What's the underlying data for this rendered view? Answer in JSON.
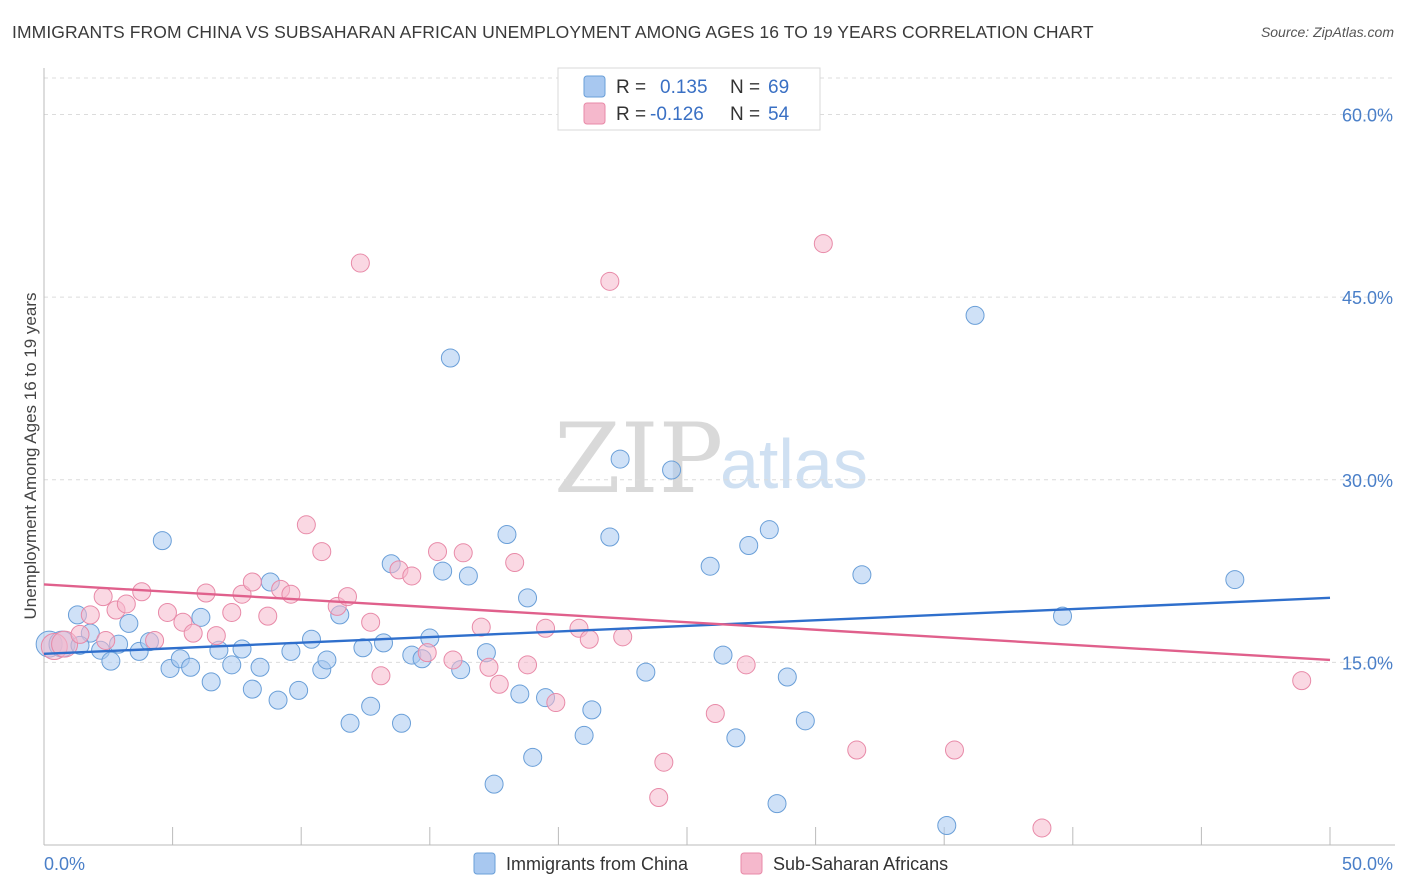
{
  "title": "IMMIGRANTS FROM CHINA VS SUBSAHARAN AFRICAN UNEMPLOYMENT AMONG AGES 16 TO 19 YEARS CORRELATION CHART",
  "source": "Source: ZipAtlas.com",
  "watermark": {
    "zip": "ZIP",
    "atlas": "atlas"
  },
  "legend": {
    "rows": [
      {
        "r_label": "R =",
        "r_value": "0.135",
        "n_label": "N =",
        "n_value": "69",
        "color": "#a8c8f0"
      },
      {
        "r_label": "R =",
        "r_value": "-0.126",
        "n_label": "N =",
        "n_value": "54",
        "color": "#f5b8cc"
      }
    ]
  },
  "chart_data": {
    "type": "scatter",
    "title": "IMMIGRANTS FROM CHINA VS SUBSAHARAN AFRICAN UNEMPLOYMENT AMONG AGES 16 TO 19 YEARS CORRELATION CHART",
    "xlabel": "",
    "ylabel": "Unemployment Among Ages 16 to 19 years",
    "xlim": [
      0,
      50
    ],
    "ylim": [
      0,
      63
    ],
    "x_tick_labels": [
      "0.0%",
      "50.0%"
    ],
    "y_ticks": [
      15,
      30,
      45,
      60
    ],
    "y_tick_labels": [
      "15.0%",
      "30.0%",
      "45.0%",
      "60.0%"
    ],
    "grid": "horizontal dashed",
    "legend_position": "top-center",
    "series": [
      {
        "name": "Immigrants from China",
        "color": "#a8c8f0",
        "stroke": "#6a9fd8",
        "trend": {
          "x": [
            0,
            50
          ],
          "y": [
            15.7,
            20.3
          ],
          "color": "#2f6fcc"
        },
        "points": [
          [
            0.2,
            16.5
          ],
          [
            0.7,
            16.5
          ],
          [
            1.3,
            18.9
          ],
          [
            1.8,
            17.4
          ],
          [
            2.2,
            16.0
          ],
          [
            2.6,
            15.1
          ],
          [
            2.9,
            16.5
          ],
          [
            3.3,
            18.2
          ],
          [
            3.7,
            15.9
          ],
          [
            4.1,
            16.7
          ],
          [
            4.6,
            25.0
          ],
          [
            4.9,
            14.5
          ],
          [
            5.3,
            15.3
          ],
          [
            5.7,
            14.6
          ],
          [
            6.1,
            18.7
          ],
          [
            6.5,
            13.4
          ],
          [
            6.8,
            16.0
          ],
          [
            7.3,
            14.8
          ],
          [
            7.7,
            16.1
          ],
          [
            8.1,
            12.8
          ],
          [
            8.4,
            14.6
          ],
          [
            8.8,
            21.6
          ],
          [
            9.1,
            11.9
          ],
          [
            9.6,
            15.9
          ],
          [
            9.9,
            12.7
          ],
          [
            10.4,
            16.9
          ],
          [
            10.8,
            14.4
          ],
          [
            11.0,
            15.2
          ],
          [
            11.5,
            18.9
          ],
          [
            11.9,
            10.0
          ],
          [
            12.4,
            16.2
          ],
          [
            12.7,
            11.4
          ],
          [
            13.2,
            16.6
          ],
          [
            13.5,
            23.1
          ],
          [
            13.9,
            10.0
          ],
          [
            14.3,
            15.6
          ],
          [
            14.7,
            15.3
          ],
          [
            15.0,
            17.0
          ],
          [
            15.5,
            22.5
          ],
          [
            15.8,
            40.0
          ],
          [
            16.2,
            14.4
          ],
          [
            16.5,
            22.1
          ],
          [
            17.2,
            15.8
          ],
          [
            17.5,
            5.0
          ],
          [
            18.0,
            25.5
          ],
          [
            18.5,
            12.4
          ],
          [
            18.8,
            20.3
          ],
          [
            19.0,
            7.2
          ],
          [
            19.5,
            12.1
          ],
          [
            21.0,
            9.0
          ],
          [
            21.3,
            11.1
          ],
          [
            22.0,
            25.3
          ],
          [
            22.4,
            31.7
          ],
          [
            23.4,
            14.2
          ],
          [
            24.4,
            30.8
          ],
          [
            25.9,
            22.9
          ],
          [
            26.4,
            15.6
          ],
          [
            26.9,
            8.8
          ],
          [
            27.4,
            24.6
          ],
          [
            28.2,
            25.9
          ],
          [
            28.5,
            3.4
          ],
          [
            28.9,
            13.8
          ],
          [
            29.6,
            10.2
          ],
          [
            31.8,
            22.2
          ],
          [
            35.1,
            1.6
          ],
          [
            36.2,
            43.5
          ],
          [
            39.6,
            18.8
          ],
          [
            46.3,
            21.8
          ],
          [
            1.4,
            16.4
          ]
        ]
      },
      {
        "name": "Sub-Saharan Africans",
        "color": "#f5b8cc",
        "stroke": "#e88aa8",
        "trend": {
          "x": [
            0,
            50
          ],
          "y": [
            21.4,
            15.2
          ],
          "color": "#e0608c"
        },
        "points": [
          [
            0.4,
            16.3
          ],
          [
            0.8,
            16.5
          ],
          [
            1.4,
            17.3
          ],
          [
            1.8,
            18.9
          ],
          [
            2.3,
            20.4
          ],
          [
            2.8,
            19.3
          ],
          [
            3.2,
            19.8
          ],
          [
            3.8,
            20.8
          ],
          [
            4.3,
            16.8
          ],
          [
            4.8,
            19.1
          ],
          [
            5.4,
            18.3
          ],
          [
            5.8,
            17.4
          ],
          [
            6.3,
            20.7
          ],
          [
            6.7,
            17.2
          ],
          [
            7.3,
            19.1
          ],
          [
            7.7,
            20.6
          ],
          [
            8.1,
            21.6
          ],
          [
            8.7,
            18.8
          ],
          [
            9.2,
            21.0
          ],
          [
            9.6,
            20.6
          ],
          [
            10.2,
            26.3
          ],
          [
            10.8,
            24.1
          ],
          [
            11.4,
            19.6
          ],
          [
            11.8,
            20.4
          ],
          [
            12.3,
            47.8
          ],
          [
            12.7,
            18.3
          ],
          [
            13.1,
            13.9
          ],
          [
            13.8,
            22.6
          ],
          [
            14.3,
            22.1
          ],
          [
            14.9,
            15.8
          ],
          [
            15.3,
            24.1
          ],
          [
            15.9,
            15.2
          ],
          [
            16.3,
            24.0
          ],
          [
            17.0,
            17.9
          ],
          [
            17.3,
            14.6
          ],
          [
            17.7,
            13.2
          ],
          [
            18.3,
            23.2
          ],
          [
            18.8,
            14.8
          ],
          [
            19.5,
            17.8
          ],
          [
            19.9,
            11.7
          ],
          [
            20.8,
            17.8
          ],
          [
            21.2,
            16.9
          ],
          [
            22.0,
            46.3
          ],
          [
            22.5,
            17.1
          ],
          [
            24.1,
            6.8
          ],
          [
            23.9,
            3.9
          ],
          [
            26.1,
            10.8
          ],
          [
            27.3,
            14.8
          ],
          [
            30.3,
            49.4
          ],
          [
            31.6,
            7.8
          ],
          [
            35.4,
            7.8
          ],
          [
            38.8,
            1.4
          ],
          [
            48.9,
            13.5
          ],
          [
            2.4,
            16.8
          ]
        ]
      }
    ]
  },
  "bottom_legend": [
    {
      "label": "Immigrants from China",
      "color": "#a8c8f0"
    },
    {
      "label": "Sub-Saharan Africans",
      "color": "#f5b8cc"
    }
  ]
}
